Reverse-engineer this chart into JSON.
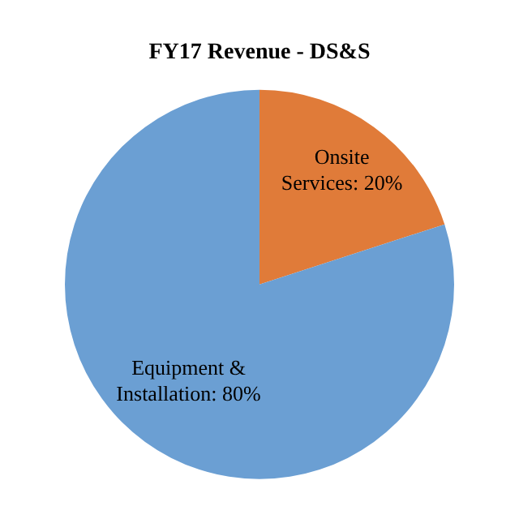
{
  "chart_data": {
    "type": "pie",
    "title": "FY17 Revenue - DS&S",
    "categories": [
      "Onsite Services",
      "Equipment & Installation"
    ],
    "values": [
      20,
      80
    ],
    "colors": [
      "#e07b39",
      "#6b9fd3"
    ],
    "value_labels": [
      "20%",
      "80%"
    ],
    "legend": false
  }
}
